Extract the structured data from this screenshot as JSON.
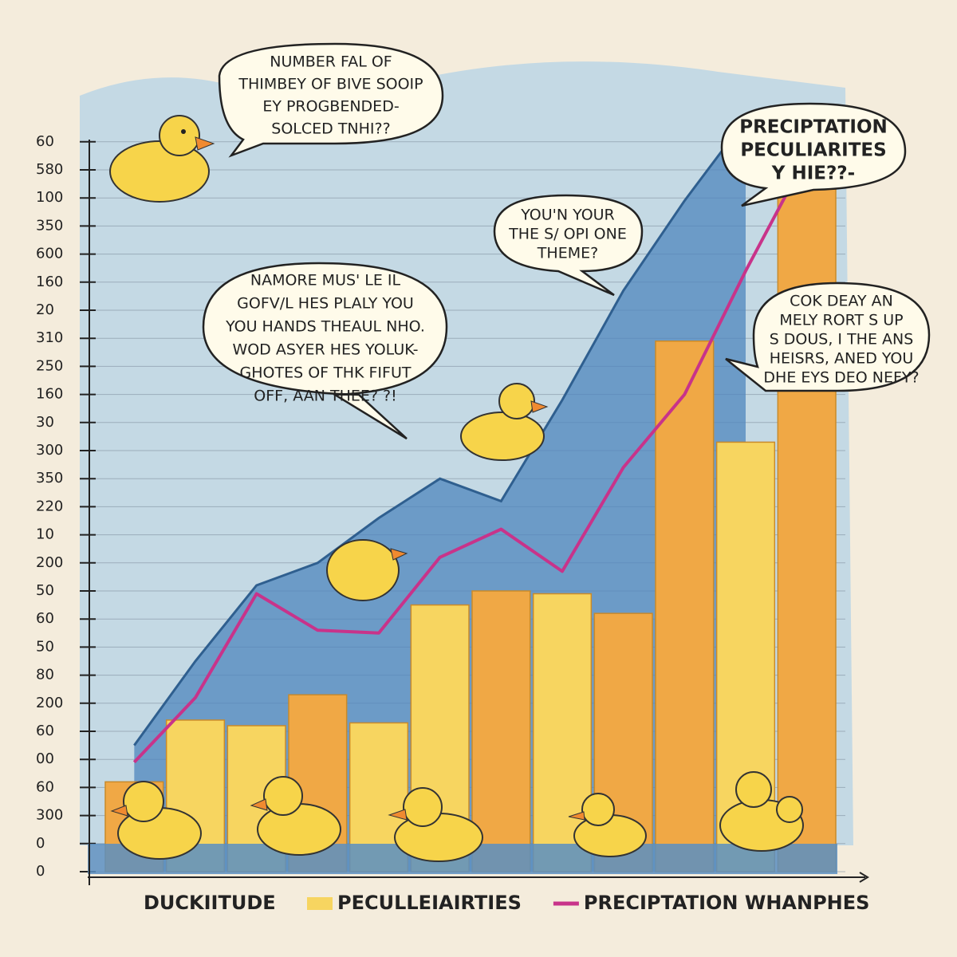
{
  "chart_data": {
    "type": "bar",
    "x_label": "DUCKIITUDE",
    "categories": [
      null,
      null,
      null,
      null,
      null,
      null,
      null,
      null,
      null,
      null,
      null,
      null
    ],
    "ylim": [
      0,
      27.5
    ],
    "yticks": [
      {
        "value": 0,
        "label": "0"
      },
      {
        "value": 1,
        "label": "0"
      },
      {
        "value": 2,
        "label": "300"
      },
      {
        "value": 3,
        "label": "60"
      },
      {
        "value": 4,
        "label": "00"
      },
      {
        "value": 5,
        "label": "60"
      },
      {
        "value": 6,
        "label": "200"
      },
      {
        "value": 7,
        "label": "80"
      },
      {
        "value": 8,
        "label": "50"
      },
      {
        "value": 9,
        "label": "60"
      },
      {
        "value": 10,
        "label": "50"
      },
      {
        "value": 11,
        "label": "200"
      },
      {
        "value": 12,
        "label": "10"
      },
      {
        "value": 13,
        "label": "220"
      },
      {
        "value": 14,
        "label": "350"
      },
      {
        "value": 15,
        "label": "300"
      },
      {
        "value": 16,
        "label": "30"
      },
      {
        "value": 17,
        "label": "160"
      },
      {
        "value": 18,
        "label": "250"
      },
      {
        "value": 19,
        "label": "310"
      },
      {
        "value": 20,
        "label": "20"
      },
      {
        "value": 21,
        "label": "160"
      },
      {
        "value": 22,
        "label": "600"
      },
      {
        "value": 23,
        "label": "350"
      },
      {
        "value": 24,
        "label": "100"
      },
      {
        "value": 25,
        "label": "580"
      },
      {
        "value": 26,
        "label": "60"
      }
    ],
    "grid": true,
    "series": [
      {
        "color": "#4f86bd",
        "style": "area",
        "values": [
          4.5,
          7.5,
          10.2,
          11.0,
          12.6,
          14.0,
          13.2,
          16.8,
          20.7,
          23.9,
          26.8,
          null
        ]
      },
      {
        "name": "PECULLEIAIRTIES",
        "style": "bar",
        "color": "#f7d560",
        "colors": [
          "#f0a845",
          "#f7d560",
          "#f7d560",
          "#f0a845",
          "#f7d560",
          "#f7d560",
          "#f0a845",
          "#f7d560",
          "#f0a845",
          "#f0a845",
          "#f7d560",
          "#f0a845"
        ],
        "values": [
          3.2,
          5.4,
          5.2,
          6.3,
          5.3,
          9.5,
          10.0,
          9.9,
          9.2,
          18.9,
          15.3,
          24.5
        ]
      },
      {
        "name": "PRECIPTATION WHANPHES",
        "style": "line",
        "color": "#c8338a",
        "values": [
          3.9,
          6.2,
          9.9,
          8.6,
          8.5,
          11.2,
          12.2,
          10.7,
          14.4,
          17.0,
          21.4,
          25.5
        ]
      }
    ],
    "annotations": [
      [
        "NUMBER FAL OF",
        "THIMBEY OF BIVE SOOIP",
        "EY PROGBENDED-",
        "SOLCED TNHI??"
      ],
      [
        "NAMORE MUS' LE IL",
        "GOFV/L HES PLALY YOU",
        "YOU HANDS THEAUL NHO.",
        "WOD ASYER HES YOLUK-",
        "GHOTES OF THK FIFUT",
        "OFF, AAN THEE? ?!"
      ],
      [
        "YOU'N YOUR",
        "THE S/ OPI ONE",
        "THEME?"
      ],
      [
        "PRECIPTATION",
        "PECULIARITES",
        "Y HIE??-"
      ],
      [
        "COK DEAY AN",
        "MELY RORT S UP",
        "S DOUS, I THE ANS",
        "HEISRS, ANED YOU",
        "DHE EYS DEO NEFY?"
      ]
    ]
  }
}
